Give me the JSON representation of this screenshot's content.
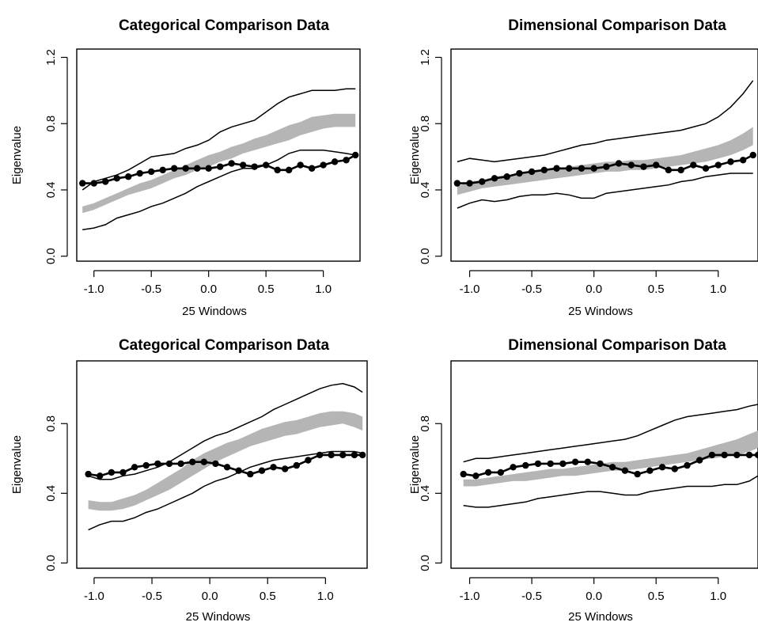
{
  "chart_data": [
    {
      "type": "line",
      "title": "Categorical Comparison Data",
      "xlabel": "25 Windows",
      "ylabel": "Eigenvalue",
      "xlim": [
        -1.15,
        1.32
      ],
      "ylim": [
        -0.03,
        1.25
      ],
      "x_ticks": [
        "-1.0",
        "-0.5",
        "0.0",
        "0.5",
        "1.0"
      ],
      "x_tick_values": [
        -1.0,
        -0.5,
        0.0,
        0.5,
        1.0
      ],
      "y_ticks": [
        "0.0",
        "0.4",
        "0.8",
        "1.2"
      ],
      "y_tick_values": [
        0.0,
        0.4,
        0.8,
        1.2
      ],
      "x": [
        -1.1,
        -1.0,
        -0.9,
        -0.8,
        -0.7,
        -0.6,
        -0.5,
        -0.4,
        -0.3,
        -0.2,
        -0.1,
        0.0,
        0.1,
        0.2,
        0.3,
        0.4,
        0.5,
        0.6,
        0.7,
        0.8,
        0.9,
        1.0,
        1.1,
        1.2,
        1.28
      ],
      "series": [
        {
          "role": "observed",
          "values": [
            0.44,
            0.44,
            0.45,
            0.47,
            0.48,
            0.5,
            0.51,
            0.52,
            0.53,
            0.53,
            0.53,
            0.53,
            0.54,
            0.56,
            0.55,
            0.54,
            0.55,
            0.52,
            0.52,
            0.55,
            0.53,
            0.55,
            0.57,
            0.58,
            0.61
          ]
        },
        {
          "role": "upper",
          "values": [
            0.4,
            0.45,
            0.47,
            0.49,
            0.52,
            0.56,
            0.6,
            0.61,
            0.62,
            0.65,
            0.67,
            0.7,
            0.75,
            0.78,
            0.8,
            0.82,
            0.87,
            0.92,
            0.96,
            0.98,
            1.0,
            1.0,
            1.0,
            1.01,
            1.01
          ]
        },
        {
          "role": "lower",
          "values": [
            0.16,
            0.17,
            0.19,
            0.23,
            0.25,
            0.27,
            0.3,
            0.32,
            0.35,
            0.38,
            0.42,
            0.45,
            0.48,
            0.51,
            0.53,
            0.53,
            0.55,
            0.58,
            0.62,
            0.64,
            0.64,
            0.64,
            0.63,
            0.62,
            0.61
          ]
        },
        {
          "role": "band_upper",
          "values": [
            0.3,
            0.32,
            0.35,
            0.38,
            0.41,
            0.44,
            0.46,
            0.49,
            0.52,
            0.55,
            0.58,
            0.61,
            0.63,
            0.66,
            0.68,
            0.71,
            0.73,
            0.76,
            0.79,
            0.81,
            0.84,
            0.85,
            0.86,
            0.86,
            0.86
          ]
        },
        {
          "role": "band_lower",
          "values": [
            0.26,
            0.28,
            0.31,
            0.34,
            0.37,
            0.39,
            0.41,
            0.44,
            0.47,
            0.49,
            0.52,
            0.54,
            0.57,
            0.59,
            0.62,
            0.64,
            0.66,
            0.68,
            0.7,
            0.73,
            0.75,
            0.77,
            0.78,
            0.78,
            0.78
          ]
        }
      ]
    },
    {
      "type": "line",
      "title": "Dimensional Comparison Data",
      "xlabel": "25 Windows",
      "ylabel": "Eigenvalue",
      "xlim": [
        -1.15,
        1.32
      ],
      "ylim": [
        -0.03,
        1.25
      ],
      "x_ticks": [
        "-1.0",
        "-0.5",
        "0.0",
        "0.5",
        "1.0"
      ],
      "x_tick_values": [
        -1.0,
        -0.5,
        0.0,
        0.5,
        1.0
      ],
      "y_ticks": [
        "0.0",
        "0.4",
        "0.8",
        "1.2"
      ],
      "y_tick_values": [
        0.0,
        0.4,
        0.8,
        1.2
      ],
      "x": [
        -1.1,
        -1.0,
        -0.9,
        -0.8,
        -0.7,
        -0.6,
        -0.5,
        -0.4,
        -0.3,
        -0.2,
        -0.1,
        0.0,
        0.1,
        0.2,
        0.3,
        0.4,
        0.5,
        0.6,
        0.7,
        0.8,
        0.9,
        1.0,
        1.1,
        1.2,
        1.28
      ],
      "series": [
        {
          "role": "observed",
          "values": [
            0.44,
            0.44,
            0.45,
            0.47,
            0.48,
            0.5,
            0.51,
            0.52,
            0.53,
            0.53,
            0.53,
            0.53,
            0.54,
            0.56,
            0.55,
            0.54,
            0.55,
            0.52,
            0.52,
            0.55,
            0.53,
            0.55,
            0.57,
            0.58,
            0.61
          ]
        },
        {
          "role": "upper",
          "values": [
            0.57,
            0.59,
            0.58,
            0.57,
            0.58,
            0.59,
            0.6,
            0.61,
            0.63,
            0.65,
            0.67,
            0.68,
            0.7,
            0.71,
            0.72,
            0.73,
            0.74,
            0.75,
            0.76,
            0.78,
            0.8,
            0.84,
            0.9,
            0.98,
            1.06
          ]
        },
        {
          "role": "lower",
          "values": [
            0.29,
            0.32,
            0.34,
            0.33,
            0.34,
            0.36,
            0.37,
            0.37,
            0.38,
            0.37,
            0.35,
            0.35,
            0.38,
            0.39,
            0.4,
            0.41,
            0.42,
            0.43,
            0.45,
            0.46,
            0.48,
            0.49,
            0.5,
            0.5,
            0.5
          ]
        },
        {
          "role": "band_upper",
          "values": [
            0.42,
            0.45,
            0.46,
            0.48,
            0.49,
            0.5,
            0.51,
            0.52,
            0.53,
            0.54,
            0.55,
            0.56,
            0.57,
            0.57,
            0.58,
            0.58,
            0.59,
            0.6,
            0.61,
            0.63,
            0.65,
            0.67,
            0.7,
            0.74,
            0.78
          ]
        },
        {
          "role": "band_lower",
          "values": [
            0.37,
            0.39,
            0.41,
            0.42,
            0.43,
            0.44,
            0.45,
            0.46,
            0.47,
            0.48,
            0.49,
            0.5,
            0.51,
            0.51,
            0.52,
            0.52,
            0.53,
            0.54,
            0.55,
            0.56,
            0.57,
            0.59,
            0.61,
            0.64,
            0.67
          ]
        }
      ]
    },
    {
      "type": "line",
      "title": "Categorical Comparison Data",
      "xlabel": "25 Windows",
      "ylabel": "Eigenvalue",
      "xlim": [
        -1.15,
        1.36
      ],
      "ylim": [
        -0.03,
        1.16
      ],
      "x_ticks": [
        "-1.0",
        "-0.5",
        "0.0",
        "0.5",
        "1.0"
      ],
      "x_tick_values": [
        -1.0,
        -0.5,
        0.0,
        0.5,
        1.0
      ],
      "y_ticks": [
        "0.0",
        "0.4",
        "0.8"
      ],
      "y_tick_values": [
        0.0,
        0.4,
        0.8
      ],
      "x": [
        -1.05,
        -0.95,
        -0.85,
        -0.75,
        -0.65,
        -0.55,
        -0.45,
        -0.35,
        -0.25,
        -0.15,
        -0.05,
        0.05,
        0.15,
        0.25,
        0.35,
        0.45,
        0.55,
        0.65,
        0.75,
        0.85,
        0.95,
        1.05,
        1.15,
        1.25,
        1.32
      ],
      "series": [
        {
          "role": "observed",
          "values": [
            0.51,
            0.5,
            0.52,
            0.52,
            0.55,
            0.56,
            0.57,
            0.57,
            0.57,
            0.58,
            0.58,
            0.57,
            0.55,
            0.53,
            0.51,
            0.53,
            0.55,
            0.54,
            0.56,
            0.59,
            0.62,
            0.62,
            0.62,
            0.62,
            0.62
          ]
        },
        {
          "role": "upper",
          "values": [
            0.5,
            0.48,
            0.48,
            0.5,
            0.51,
            0.53,
            0.55,
            0.58,
            0.62,
            0.66,
            0.7,
            0.73,
            0.75,
            0.78,
            0.81,
            0.84,
            0.88,
            0.91,
            0.94,
            0.97,
            1.0,
            1.02,
            1.03,
            1.01,
            0.98
          ]
        },
        {
          "role": "lower",
          "values": [
            0.19,
            0.22,
            0.24,
            0.24,
            0.26,
            0.29,
            0.31,
            0.34,
            0.37,
            0.4,
            0.44,
            0.47,
            0.49,
            0.52,
            0.55,
            0.57,
            0.59,
            0.6,
            0.61,
            0.62,
            0.63,
            0.64,
            0.64,
            0.64,
            0.63
          ]
        },
        {
          "role": "band_upper",
          "values": [
            0.36,
            0.35,
            0.35,
            0.37,
            0.39,
            0.42,
            0.46,
            0.5,
            0.54,
            0.59,
            0.63,
            0.66,
            0.69,
            0.71,
            0.74,
            0.77,
            0.79,
            0.81,
            0.82,
            0.84,
            0.86,
            0.87,
            0.87,
            0.86,
            0.84
          ]
        },
        {
          "role": "band_lower",
          "values": [
            0.31,
            0.3,
            0.3,
            0.31,
            0.33,
            0.36,
            0.39,
            0.42,
            0.46,
            0.5,
            0.54,
            0.58,
            0.61,
            0.64,
            0.67,
            0.69,
            0.71,
            0.73,
            0.74,
            0.76,
            0.78,
            0.79,
            0.8,
            0.78,
            0.76
          ]
        }
      ]
    },
    {
      "type": "line",
      "title": "Dimensional Comparison Data",
      "xlabel": "25 Windows",
      "ylabel": "Eigenvalue",
      "xlim": [
        -1.15,
        1.32
      ],
      "ylim": [
        -0.03,
        1.16
      ],
      "x_ticks": [
        "-1.0",
        "-0.5",
        "0.0",
        "0.5",
        "1.0"
      ],
      "x_tick_values": [
        -1.0,
        -0.5,
        0.0,
        0.5,
        1.0
      ],
      "y_ticks": [
        "0.0",
        "0.4",
        "0.8"
      ],
      "y_tick_values": [
        0.0,
        0.4,
        0.8
      ],
      "x": [
        -1.05,
        -0.95,
        -0.85,
        -0.75,
        -0.65,
        -0.55,
        -0.45,
        -0.35,
        -0.25,
        -0.15,
        -0.05,
        0.05,
        0.15,
        0.25,
        0.35,
        0.45,
        0.55,
        0.65,
        0.75,
        0.85,
        0.95,
        1.05,
        1.15,
        1.25,
        1.32
      ],
      "series": [
        {
          "role": "observed",
          "values": [
            0.51,
            0.5,
            0.52,
            0.52,
            0.55,
            0.56,
            0.57,
            0.57,
            0.57,
            0.58,
            0.58,
            0.57,
            0.55,
            0.53,
            0.51,
            0.53,
            0.55,
            0.54,
            0.56,
            0.59,
            0.62,
            0.62,
            0.62,
            0.62,
            0.62
          ]
        },
        {
          "role": "upper",
          "values": [
            0.58,
            0.6,
            0.6,
            0.61,
            0.62,
            0.63,
            0.64,
            0.65,
            0.66,
            0.67,
            0.68,
            0.69,
            0.7,
            0.71,
            0.73,
            0.76,
            0.79,
            0.82,
            0.84,
            0.85,
            0.86,
            0.87,
            0.88,
            0.9,
            0.91
          ]
        },
        {
          "role": "lower",
          "values": [
            0.33,
            0.32,
            0.32,
            0.33,
            0.34,
            0.35,
            0.37,
            0.38,
            0.39,
            0.4,
            0.41,
            0.41,
            0.4,
            0.39,
            0.39,
            0.41,
            0.42,
            0.43,
            0.44,
            0.44,
            0.44,
            0.45,
            0.45,
            0.47,
            0.5
          ]
        },
        {
          "role": "band_upper",
          "values": [
            0.48,
            0.48,
            0.49,
            0.5,
            0.51,
            0.52,
            0.53,
            0.54,
            0.54,
            0.55,
            0.56,
            0.57,
            0.58,
            0.58,
            0.59,
            0.6,
            0.61,
            0.62,
            0.63,
            0.65,
            0.67,
            0.69,
            0.71,
            0.74,
            0.76
          ]
        },
        {
          "role": "band_lower",
          "values": [
            0.44,
            0.44,
            0.45,
            0.46,
            0.47,
            0.47,
            0.48,
            0.49,
            0.5,
            0.5,
            0.51,
            0.52,
            0.53,
            0.53,
            0.54,
            0.55,
            0.56,
            0.57,
            0.58,
            0.59,
            0.6,
            0.61,
            0.62,
            0.64,
            0.66
          ]
        }
      ]
    }
  ]
}
